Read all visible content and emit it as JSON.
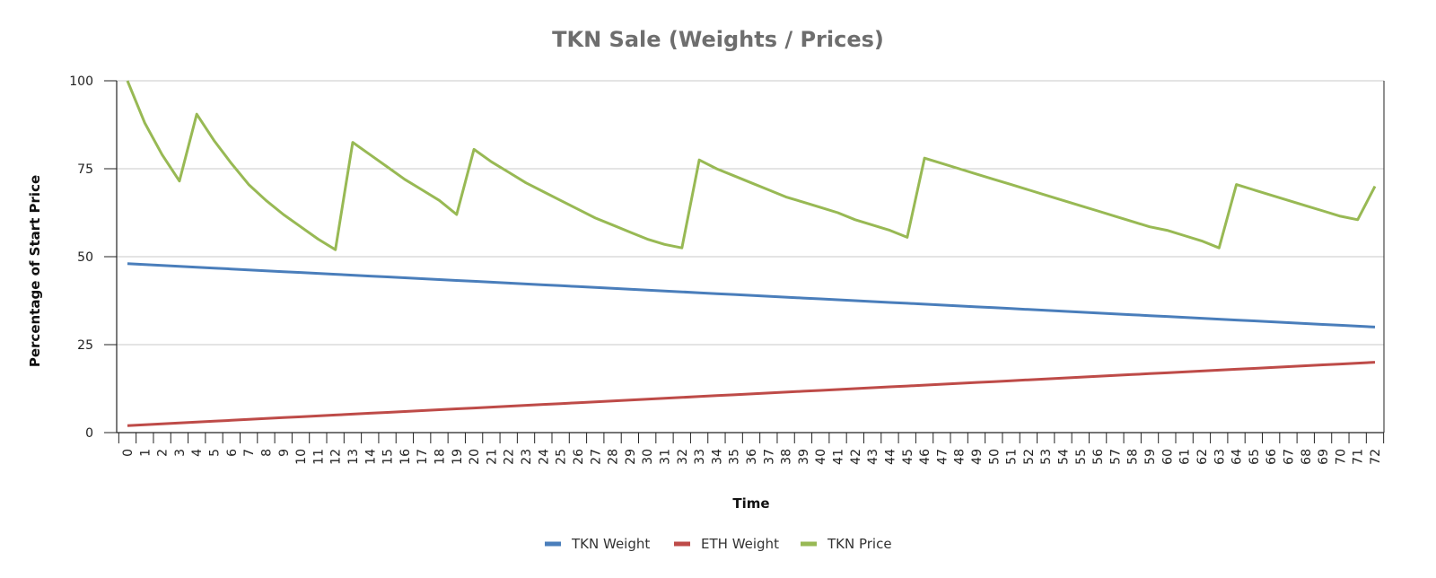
{
  "chart_data": {
    "type": "line",
    "title": "TKN Sale (Weights / Prices)",
    "xlabel": "Time",
    "ylabel": "Percentage of Start Price",
    "ylim": [
      0,
      100
    ],
    "yticks": [
      0,
      25,
      50,
      75,
      100
    ],
    "grid": true,
    "legend": "bottom",
    "x": [
      0,
      1,
      2,
      3,
      4,
      5,
      6,
      7,
      8,
      9,
      10,
      11,
      12,
      13,
      14,
      15,
      16,
      17,
      18,
      19,
      20,
      21,
      22,
      23,
      24,
      25,
      26,
      27,
      28,
      29,
      30,
      31,
      32,
      33,
      34,
      35,
      36,
      37,
      38,
      39,
      40,
      41,
      42,
      43,
      44,
      45,
      46,
      47,
      48,
      49,
      50,
      51,
      52,
      53,
      54,
      55,
      56,
      57,
      58,
      59,
      60,
      61,
      62,
      63,
      64,
      65,
      66,
      67,
      68,
      69,
      70,
      71,
      72
    ],
    "series": [
      {
        "name": "TKN Weight",
        "color": "#4a7ebb",
        "values": [
          48,
          47.75,
          47.5,
          47.25,
          47,
          46.75,
          46.5,
          46.25,
          46,
          45.75,
          45.5,
          45.25,
          45,
          44.75,
          44.5,
          44.25,
          44,
          43.75,
          43.5,
          43.25,
          43,
          42.75,
          42.5,
          42.25,
          42,
          41.75,
          41.5,
          41.25,
          41,
          40.75,
          40.5,
          40.25,
          40,
          39.75,
          39.5,
          39.25,
          39,
          38.75,
          38.5,
          38.25,
          38,
          37.75,
          37.5,
          37.25,
          37,
          36.75,
          36.5,
          36.25,
          36,
          35.75,
          35.5,
          35.25,
          35,
          34.75,
          34.5,
          34.25,
          34,
          33.75,
          33.5,
          33.25,
          33,
          32.75,
          32.5,
          32.25,
          32,
          31.75,
          31.5,
          31.25,
          31,
          30.75,
          30.5,
          30.25,
          30
        ]
      },
      {
        "name": "ETH Weight",
        "color": "#be4b48",
        "values": [
          2,
          2.25,
          2.5,
          2.75,
          3,
          3.25,
          3.5,
          3.75,
          4,
          4.25,
          4.5,
          4.75,
          5,
          5.25,
          5.5,
          5.75,
          6,
          6.25,
          6.5,
          6.75,
          7,
          7.25,
          7.5,
          7.75,
          8,
          8.25,
          8.5,
          8.75,
          9,
          9.25,
          9.5,
          9.75,
          10,
          10.25,
          10.5,
          10.75,
          11,
          11.25,
          11.5,
          11.75,
          12,
          12.25,
          12.5,
          12.75,
          13,
          13.25,
          13.5,
          13.75,
          14,
          14.25,
          14.5,
          14.75,
          15,
          15.25,
          15.5,
          15.75,
          16,
          16.25,
          16.5,
          16.75,
          17,
          17.25,
          17.5,
          17.75,
          18,
          18.25,
          18.5,
          18.75,
          19,
          19.25,
          19.5,
          19.75,
          20
        ]
      },
      {
        "name": "TKN Price",
        "color": "#98b954",
        "values": [
          100,
          88,
          79,
          71.5,
          90.5,
          83,
          76.5,
          70.5,
          66,
          62,
          58.5,
          55,
          52,
          82.5,
          79,
          75.5,
          72,
          69,
          66,
          62,
          80.5,
          77,
          74,
          71,
          68.5,
          66,
          63.5,
          61,
          59,
          57,
          55,
          53.5,
          52.5,
          77.5,
          75,
          73,
          71,
          69,
          67,
          65.5,
          64,
          62.5,
          60.5,
          59,
          57.5,
          55.5,
          78,
          76.5,
          75,
          73.5,
          72,
          70.5,
          69,
          67.5,
          66,
          64.5,
          63,
          61.5,
          60,
          58.5,
          57.5,
          56,
          54.5,
          52.5,
          70.5,
          69,
          67.5,
          66,
          64.5,
          63,
          61.5,
          60.5,
          70
        ]
      }
    ]
  }
}
